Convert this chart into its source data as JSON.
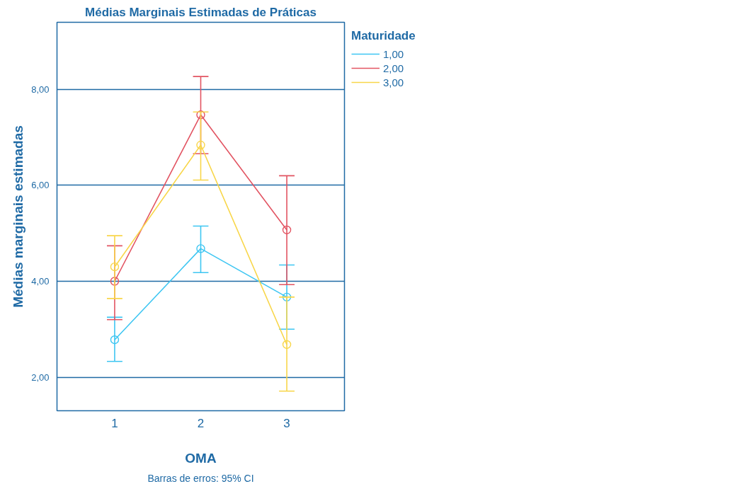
{
  "chart_data": {
    "type": "line",
    "title": "Médias Marginais Estimadas de Práticas",
    "xlabel": "OMA",
    "ylabel": "Médias marginais estimadas",
    "legend_title": "Maturidade",
    "annotations": [
      "Barras de erros: 95% CI"
    ],
    "categories": [
      "1",
      "2",
      "3"
    ],
    "series": [
      {
        "name": "1,00",
        "color": "#3ec6f2",
        "values": [
          2.78,
          4.68,
          3.67
        ],
        "errors": [
          [
            2.33,
            3.25
          ],
          [
            4.18,
            5.15
          ],
          [
            3.0,
            4.34
          ]
        ]
      },
      {
        "name": "2,00",
        "color": "#e25462",
        "values": [
          4.0,
          7.47,
          5.07
        ],
        "errors": [
          [
            3.2,
            4.74
          ],
          [
            6.66,
            8.27
          ],
          [
            3.93,
            6.2
          ]
        ]
      },
      {
        "name": "3,00",
        "color": "#f8d64a",
        "values": [
          4.3,
          6.84,
          2.68
        ],
        "errors": [
          [
            3.64,
            4.95
          ],
          [
            6.11,
            7.53
          ],
          [
            1.71,
            3.67
          ]
        ]
      }
    ],
    "ylim": [
      1.3,
      9.4
    ],
    "yticks": [
      {
        "value": 2,
        "label": "2,00"
      },
      {
        "value": 4,
        "label": "4,00"
      },
      {
        "value": 6,
        "label": "6,00"
      },
      {
        "value": 8,
        "label": "8,00"
      }
    ],
    "grid": "y",
    "legend": "top right",
    "marker": "circle",
    "line_style": "solid"
  }
}
